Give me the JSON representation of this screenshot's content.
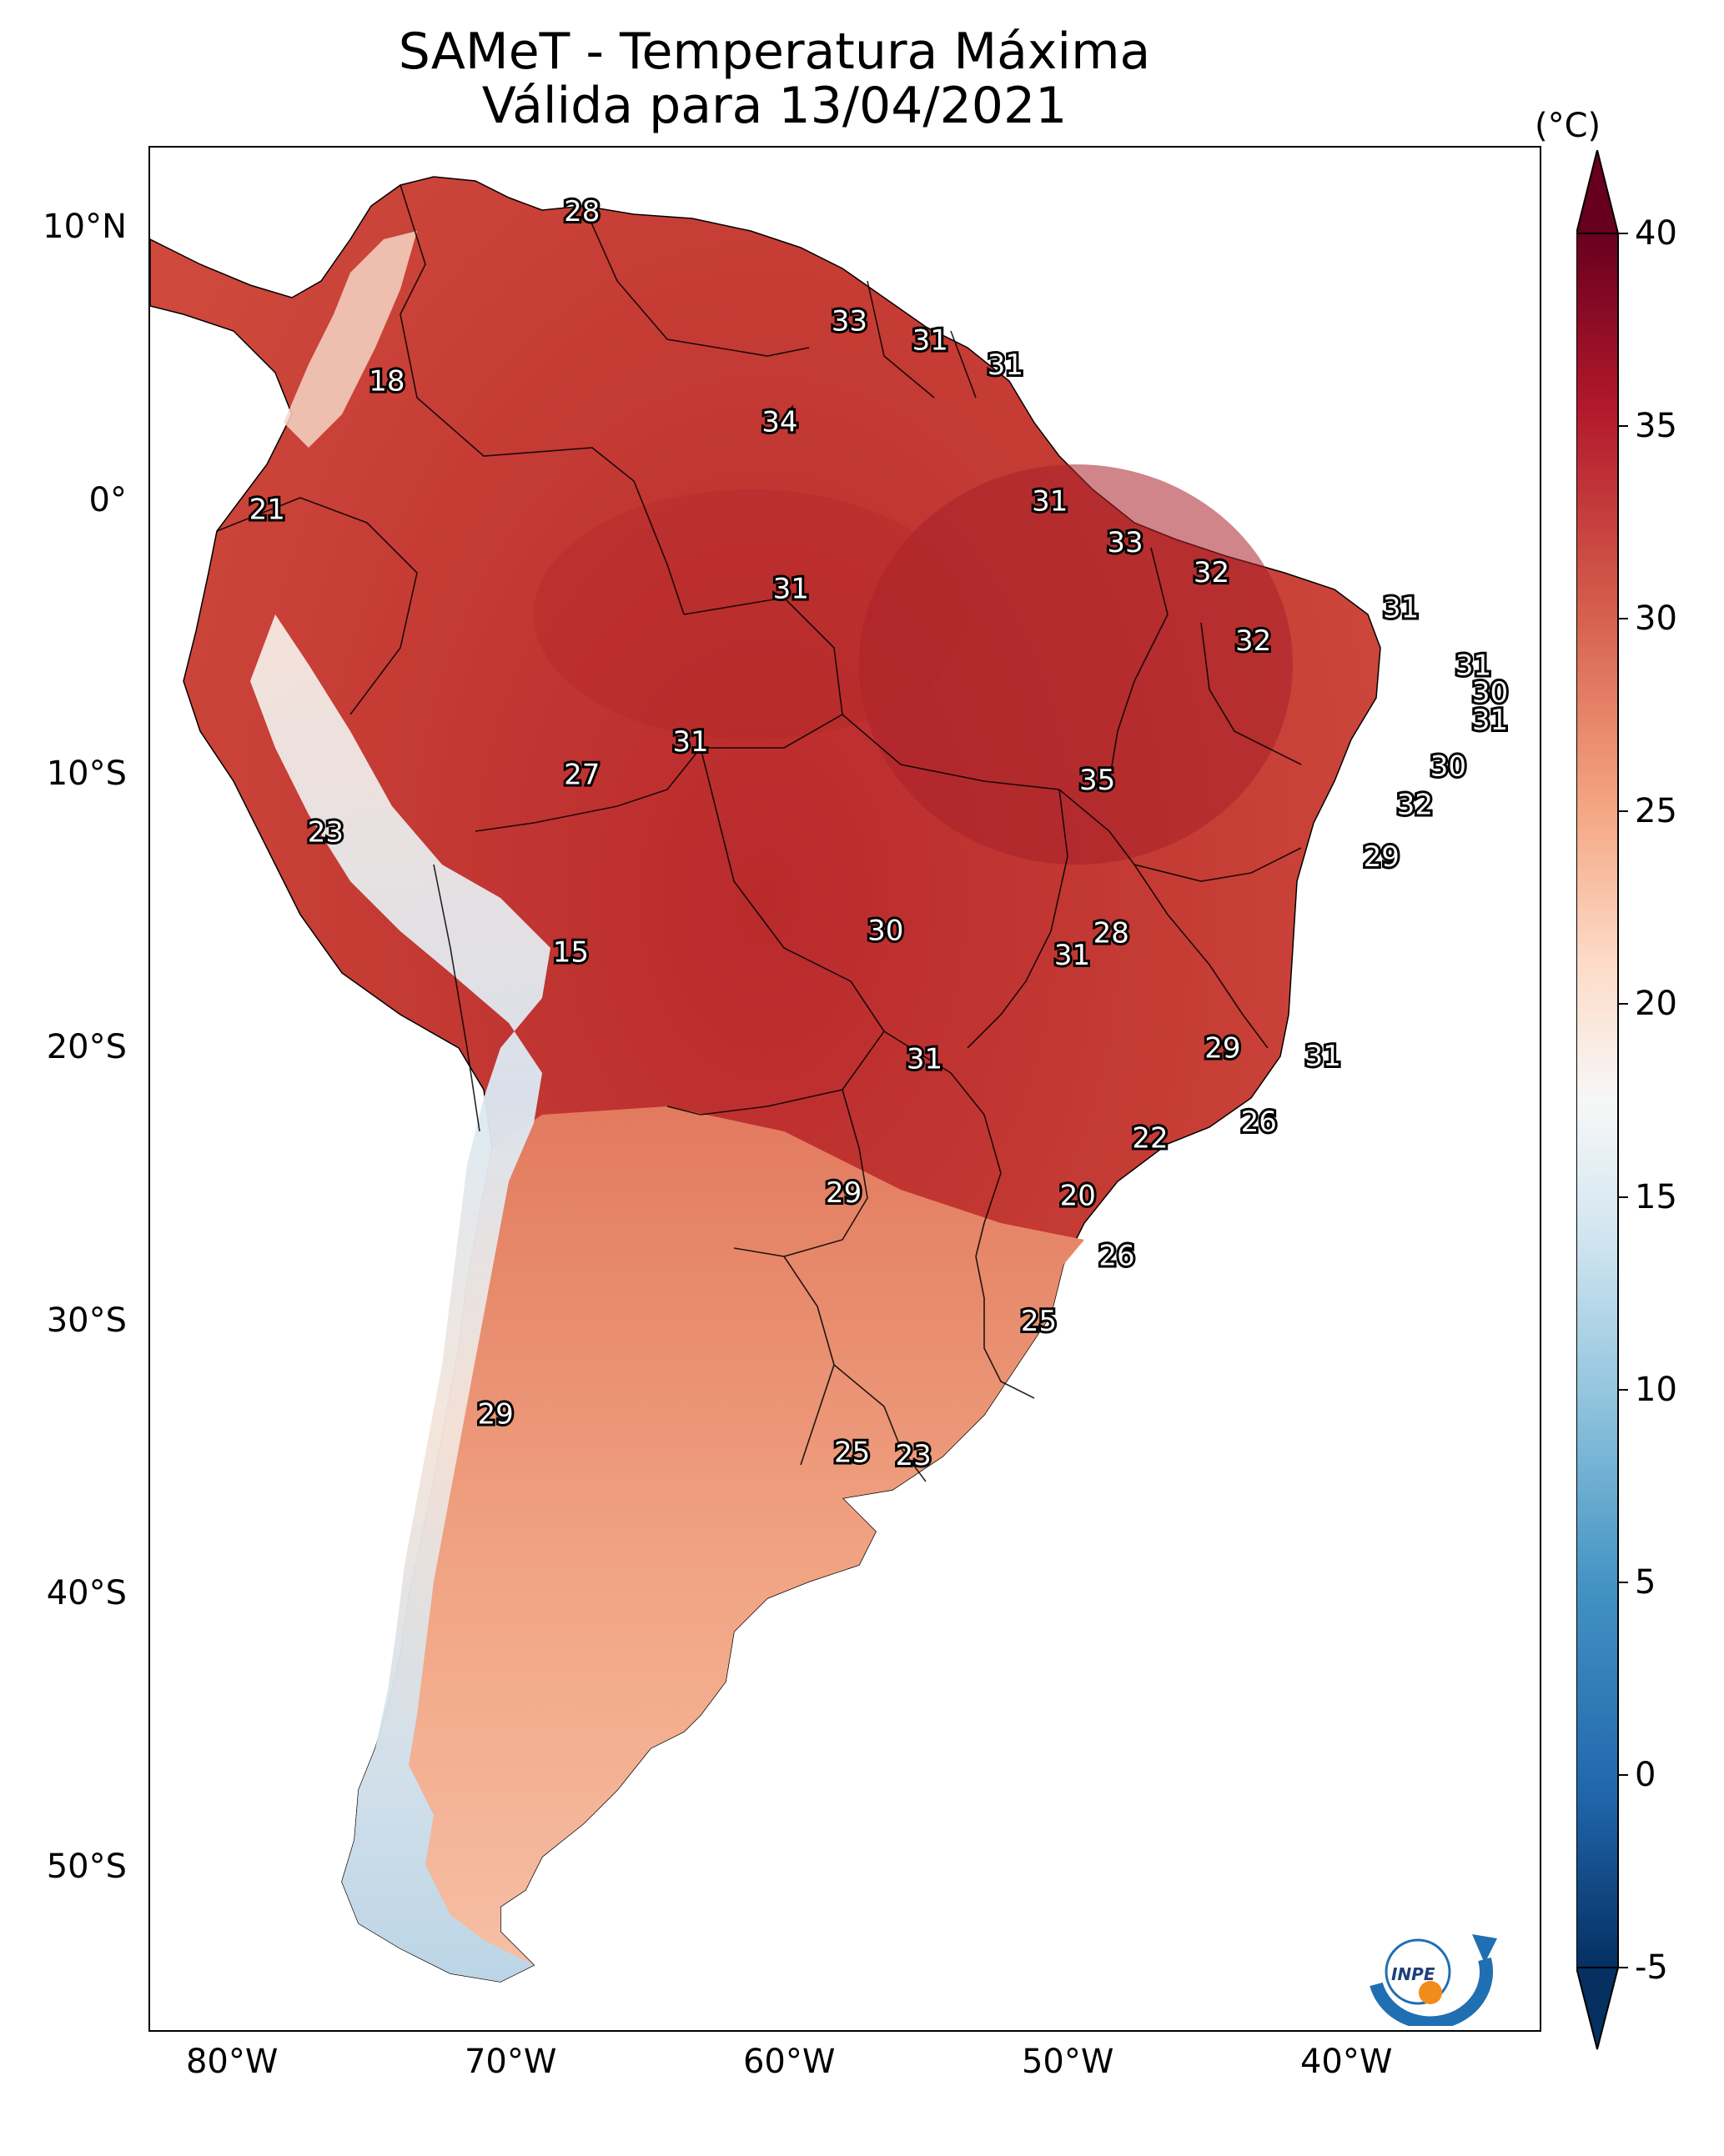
{
  "title": {
    "line1": "SAMeT - Temperatura Máxima",
    "line2": "Válida para 13/04/2021"
  },
  "axes": {
    "lat_labels": [
      "10°N",
      "0°",
      "10°S",
      "20°S",
      "30°S",
      "40°S",
      "50°S"
    ],
    "lat_values": [
      10,
      0,
      -10,
      -20,
      -30,
      -40,
      -50
    ],
    "lon_labels": [
      "80°W",
      "70°W",
      "60°W",
      "50°W",
      "40°W"
    ],
    "lon_values": [
      -80,
      -70,
      -60,
      -50,
      -40
    ],
    "lon_range": [
      -83,
      -33
    ],
    "lat_range": [
      -56,
      13
    ]
  },
  "colorbar": {
    "unit": "(°C)",
    "ticks": [
      "40",
      "35",
      "30",
      "25",
      "20",
      "15",
      "10",
      "5",
      "0",
      "-5"
    ],
    "tick_values": [
      40,
      35,
      30,
      25,
      20,
      15,
      10,
      5,
      0,
      -5
    ],
    "range": [
      -5,
      40
    ],
    "colormap": "RdBu_r",
    "colors": [
      "#053061",
      "#2166ac",
      "#4393c3",
      "#92c5de",
      "#d1e5f0",
      "#f7f7f7",
      "#fddbc7",
      "#f4a582",
      "#d6604d",
      "#b2182b",
      "#67001f"
    ]
  },
  "colors": {
    "dominant_fill": "#c8382f",
    "south_fill": "#ef9c7b",
    "andes_cool": "#d7e7f2"
  },
  "logo": {
    "text": "INPE",
    "icon": "inpe-logo-icon"
  },
  "labels": [
    {
      "text": "28",
      "lon": -67.5,
      "lat": 10.6
    },
    {
      "text": "33",
      "lon": -57.9,
      "lat": 6.6
    },
    {
      "text": "31",
      "lon": -55.0,
      "lat": 5.9
    },
    {
      "text": "31",
      "lon": -52.3,
      "lat": 5.0
    },
    {
      "text": "18",
      "lon": -74.5,
      "lat": 4.4
    },
    {
      "text": "34",
      "lon": -60.4,
      "lat": 2.9
    },
    {
      "text": "21",
      "lon": -78.8,
      "lat": -0.3
    },
    {
      "text": "31",
      "lon": -50.7,
      "lat": 0.0
    },
    {
      "text": "33",
      "lon": -48.0,
      "lat": -1.5
    },
    {
      "text": "32",
      "lon": -44.9,
      "lat": -2.6
    },
    {
      "text": "31",
      "lon": -60.0,
      "lat": -3.2
    },
    {
      "text": "31",
      "lon": -38.1,
      "lat": -3.9
    },
    {
      "text": "32",
      "lon": -43.4,
      "lat": -5.1
    },
    {
      "text": "31",
      "lon": -35.5,
      "lat": -6.0
    },
    {
      "text": "30",
      "lon": -34.9,
      "lat": -7.0
    },
    {
      "text": "31",
      "lon": -34.9,
      "lat": -8.0
    },
    {
      "text": "31",
      "lon": -63.6,
      "lat": -8.8
    },
    {
      "text": "30",
      "lon": -36.4,
      "lat": -9.7
    },
    {
      "text": "27",
      "lon": -67.5,
      "lat": -10.0
    },
    {
      "text": "35",
      "lon": -49.0,
      "lat": -10.2
    },
    {
      "text": "32",
      "lon": -37.6,
      "lat": -11.1
    },
    {
      "text": "23",
      "lon": -76.7,
      "lat": -12.1
    },
    {
      "text": "29",
      "lon": -38.8,
      "lat": -13.0
    },
    {
      "text": "28",
      "lon": -48.5,
      "lat": -15.8
    },
    {
      "text": "30",
      "lon": -56.6,
      "lat": -15.7
    },
    {
      "text": "31",
      "lon": -49.9,
      "lat": -16.6
    },
    {
      "text": "15",
      "lon": -67.9,
      "lat": -16.5
    },
    {
      "text": "29",
      "lon": -44.5,
      "lat": -20.0
    },
    {
      "text": "31",
      "lon": -40.9,
      "lat": -20.3
    },
    {
      "text": "31",
      "lon": -55.2,
      "lat": -20.4
    },
    {
      "text": "26",
      "lon": -43.2,
      "lat": -22.7
    },
    {
      "text": "22",
      "lon": -47.1,
      "lat": -23.3
    },
    {
      "text": "29",
      "lon": -58.1,
      "lat": -25.3
    },
    {
      "text": "20",
      "lon": -49.7,
      "lat": -25.4
    },
    {
      "text": "26",
      "lon": -48.3,
      "lat": -27.6
    },
    {
      "text": "25",
      "lon": -51.1,
      "lat": -30.0
    },
    {
      "text": "29",
      "lon": -70.6,
      "lat": -33.4
    },
    {
      "text": "25",
      "lon": -57.8,
      "lat": -34.8
    },
    {
      "text": "23",
      "lon": -55.6,
      "lat": -34.9
    }
  ]
}
